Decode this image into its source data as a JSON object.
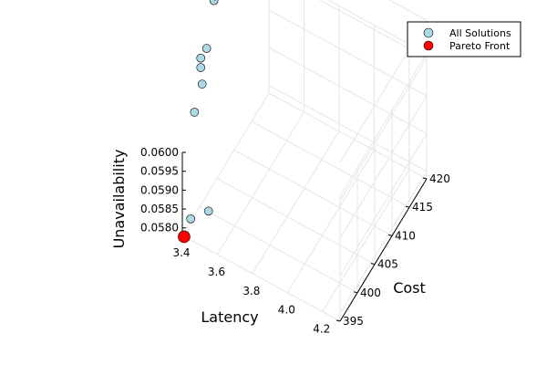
{
  "chart_data": {
    "type": "scatter",
    "projection": "3d",
    "grid": true,
    "legend_position": "top-right",
    "axes": {
      "x": {
        "label": "Latency",
        "range": [
          3.4,
          4.3
        ],
        "ticks": [
          "3.4",
          "3.6",
          "3.8",
          "4.0",
          "4.2"
        ],
        "tick_values": [
          3.4,
          3.6,
          3.8,
          4.0,
          4.2
        ]
      },
      "y": {
        "label": "Cost",
        "range": [
          395,
          420
        ],
        "ticks": [
          "395",
          "400",
          "405",
          "410",
          "415",
          "420"
        ],
        "tick_values": [
          395,
          400,
          405,
          410,
          415,
          420
        ]
      },
      "z": {
        "label": "Unavailability",
        "range": [
          0.0578,
          0.06
        ],
        "ticks": [
          "0.0580",
          "0.0585",
          "0.0590",
          "0.0595",
          "0.0600"
        ],
        "tick_values": [
          0.058,
          0.0585,
          0.059,
          0.0595,
          0.06
        ]
      }
    },
    "series": [
      {
        "name": "All Solutions",
        "color": "#add8e6",
        "points": [
          {
            "x": 3.43,
            "y": 395.9,
            "z": 0.05818
          },
          {
            "x": 3.5,
            "y": 397.5,
            "z": 0.05832
          },
          {
            "x": 3.43,
            "y": 397.0,
            "z": 0.06084
          },
          {
            "x": 3.43,
            "y": 399.2,
            "z": 0.06125
          },
          {
            "x": 3.43,
            "y": 398.8,
            "z": 0.06175
          },
          {
            "x": 3.43,
            "y": 398.8,
            "z": 0.062
          },
          {
            "x": 3.43,
            "y": 400.5,
            "z": 0.062
          },
          {
            "x": 3.43,
            "y": 402.6,
            "z": 0.06295
          },
          {
            "x": 3.43,
            "y": 402.9,
            "z": 0.06303
          }
        ]
      },
      {
        "name": "Pareto Front",
        "color": "#ff0000",
        "points": [
          {
            "x": 3.41,
            "y": 395.0,
            "z": 0.05779
          }
        ]
      }
    ]
  }
}
